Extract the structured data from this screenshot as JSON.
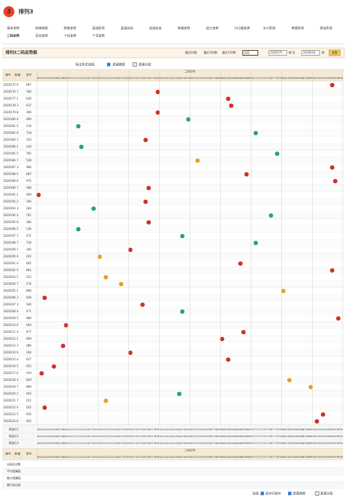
{
  "header": {
    "logo": "排列3",
    "nav": [
      "基本走势",
      "和值和尾",
      "跨度走势",
      "直选形态",
      "直选综合",
      "组选综合",
      "和尾走势",
      "组三走势",
      "012路走势",
      "大小形态",
      "奇偶形态",
      "质合形态"
    ],
    "nav2": [
      "二码走势",
      "百位走势",
      "十位走势",
      "个位走势"
    ]
  },
  "toolbar": {
    "title": "排列3二码走势图",
    "recent": [
      "最近50期",
      "最近100期",
      "最近150期"
    ],
    "select": "自定",
    "from": "2020175",
    "mid": "期 至",
    "to": "2020224",
    "unit": "期",
    "button": "查看"
  },
  "options": {
    "label": "标注形式选择:",
    "a": "遗漏数据",
    "b": "遗漏分层"
  },
  "table": {
    "headers": [
      "期号",
      "和值",
      "奖号"
    ],
    "group": "二码分布",
    "columns": [
      "00",
      "01",
      "02",
      "03",
      "04",
      "05",
      "06",
      "07",
      "08",
      "09",
      "10",
      "11",
      "12",
      "13",
      "14",
      "15",
      "16",
      "17",
      "18",
      "19",
      "20",
      "21",
      "22",
      "23",
      "24",
      "25",
      "26",
      "27",
      "28",
      "29",
      "30",
      "31",
      "32",
      "33",
      "34",
      "35",
      "36",
      "37",
      "38",
      "39",
      "40",
      "41",
      "42",
      "43",
      "44",
      "45",
      "46",
      "47",
      "48",
      "49",
      "50",
      "51",
      "52",
      "53",
      "54",
      "55",
      "56",
      "57",
      "58",
      "59",
      "60",
      "61",
      "62",
      "63",
      "64",
      "65",
      "66",
      "67",
      "68",
      "69",
      "70",
      "71",
      "72",
      "73",
      "74",
      "75",
      "76",
      "77",
      "78",
      "79",
      "80",
      "81",
      "82",
      "83",
      "84",
      "85",
      "86",
      "87",
      "88",
      "89",
      "90",
      "91",
      "92",
      "93",
      "94",
      "95",
      "96",
      "97",
      "98",
      "99"
    ],
    "rows": [
      {
        "period": "2020175",
        "sum": 6,
        "number": "967",
        "hit": 96
      },
      {
        "period": "2020176",
        "sum": 7,
        "number": "394",
        "hit": 39
      },
      {
        "period": "2020177",
        "sum": 1,
        "number": "626",
        "hit": 62
      },
      {
        "period": "2020178",
        "sum": 3,
        "number": "637",
        "hit": 63
      },
      {
        "period": "2020179",
        "sum": 8,
        "number": "396",
        "hit": 39
      },
      {
        "period": "2020180",
        "sum": 4,
        "number": "490",
        "hit": 49
      },
      {
        "period": "2020181",
        "sum": 5,
        "number": "134",
        "hit": 13
      },
      {
        "period": "2020182",
        "sum": 8,
        "number": "718",
        "hit": 71
      },
      {
        "period": "2020183",
        "sum": 7,
        "number": "353",
        "hit": 35
      },
      {
        "period": "2020184",
        "sum": 1,
        "number": "140",
        "hit": 14
      },
      {
        "period": "2020185",
        "sum": 5,
        "number": "785",
        "hit": 78
      },
      {
        "period": "2020186",
        "sum": 7,
        "number": "528",
        "hit": 52
      },
      {
        "period": "2020187",
        "sum": 3,
        "number": "966",
        "hit": 96
      },
      {
        "period": "2020188",
        "sum": 5,
        "number": "687",
        "hit": 68
      },
      {
        "period": "2020189",
        "sum": 6,
        "number": "975",
        "hit": 97
      },
      {
        "period": "2020190",
        "sum": 7,
        "number": "368",
        "hit": 36
      },
      {
        "period": "2020191",
        "sum": 1,
        "number": "009",
        "hit": 0
      },
      {
        "period": "2020192",
        "sum": 2,
        "number": "356",
        "hit": 35
      },
      {
        "period": "2020193",
        "sum": 3,
        "number": "183",
        "hit": 18
      },
      {
        "period": "2020194",
        "sum": 4,
        "number": "761",
        "hit": 76
      },
      {
        "period": "2020195",
        "sum": 8,
        "number": "366",
        "hit": 36
      },
      {
        "period": "2020196",
        "sum": 5,
        "number": "136",
        "hit": 13
      },
      {
        "period": "2020197",
        "sum": 7,
        "number": "471",
        "hit": 47
      },
      {
        "period": "2020198",
        "sum": 7,
        "number": "716",
        "hit": 71
      },
      {
        "period": "2020199",
        "sum": 7,
        "number": "305",
        "hit": 30
      },
      {
        "period": "2020200",
        "sum": 6,
        "number": "202",
        "hit": 20
      },
      {
        "period": "2020201",
        "sum": 4,
        "number": "662",
        "hit": 66
      },
      {
        "period": "2020202",
        "sum": 5,
        "number": "961",
        "hit": 96
      },
      {
        "period": "2020203",
        "sum": 5,
        "number": "222",
        "hit": 22
      },
      {
        "period": "2020204",
        "sum": 7,
        "number": "274",
        "hit": 27
      },
      {
        "period": "2020205",
        "sum": 1,
        "number": "806",
        "hit": 80
      },
      {
        "period": "2020206",
        "sum": 3,
        "number": "028",
        "hit": 2
      },
      {
        "period": "2020207",
        "sum": 3,
        "number": "346",
        "hit": 34
      },
      {
        "period": "2020208",
        "sum": 4,
        "number": "471",
        "hit": 47
      },
      {
        "period": "2020209",
        "sum": 5,
        "number": "980",
        "hit": 98
      },
      {
        "period": "2020210",
        "sum": 6,
        "number": "094",
        "hit": 9
      },
      {
        "period": "2020211",
        "sum": 4,
        "number": "677",
        "hit": 67
      },
      {
        "period": "2020212",
        "sum": 1,
        "number": "609",
        "hit": 60
      },
      {
        "period": "2020213",
        "sum": 3,
        "number": "086",
        "hit": 8
      },
      {
        "period": "2020214",
        "sum": 6,
        "number": "304",
        "hit": 30
      },
      {
        "period": "2020215",
        "sum": 4,
        "number": "627",
        "hit": 62
      },
      {
        "period": "2020216",
        "sum": 5,
        "number": "055",
        "hit": 5
      },
      {
        "period": "2020217",
        "sum": 6,
        "number": "019",
        "hit": 1
      },
      {
        "period": "2020218",
        "sum": 4,
        "number": "829",
        "hit": 82
      },
      {
        "period": "2020219",
        "sum": 7,
        "number": "899",
        "hit": 89
      },
      {
        "period": "2020220",
        "sum": 2,
        "number": "462",
        "hit": 46
      },
      {
        "period": "2020221",
        "sum": 7,
        "number": "221",
        "hit": 22
      },
      {
        "period": "2020222",
        "sum": 4,
        "number": "022",
        "hit": 2
      },
      {
        "period": "2020223",
        "sum": 5,
        "number": "935",
        "hit": 93
      },
      {
        "period": "2020224",
        "sum": 6,
        "number": "912",
        "hit": 91
      }
    ],
    "preselect": [
      "预选行1",
      "预选行2",
      "预选行3"
    ],
    "stats": [
      "出现总次数",
      "平均遗漏值",
      "最大遗漏值",
      "最大连出值"
    ]
  },
  "footer": {
    "label": "选择:",
    "a": "显示行提示",
    "b": "遗漏数据",
    "c": "遗漏分层"
  }
}
